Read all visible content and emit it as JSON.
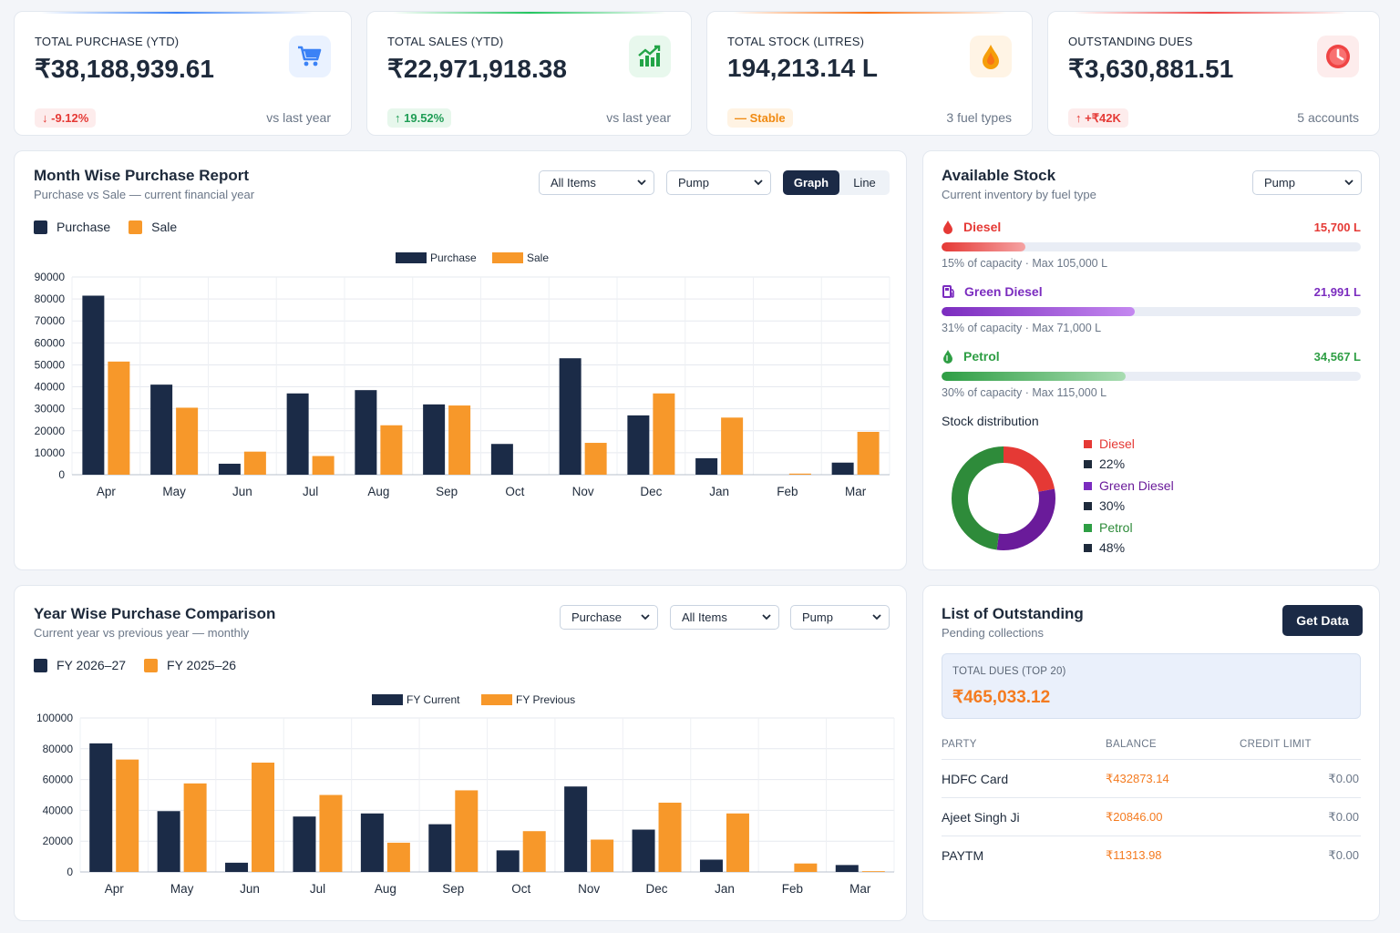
{
  "kpis": [
    {
      "label": "TOTAL PURCHASE (YTD)",
      "currency": "₹",
      "value": "38,188,939.61",
      "badge": "-9.12%",
      "badge_dir": "down",
      "note": "vs last year",
      "icon": "cart-icon",
      "accent": "#3b82f6"
    },
    {
      "label": "TOTAL SALES (YTD)",
      "currency": "₹",
      "value": "22,971,918.38",
      "badge": "19.52%",
      "badge_dir": "up",
      "note": "vs last year",
      "icon": "chart-up-icon",
      "accent": "#22c55e"
    },
    {
      "label": "TOTAL STOCK (LITRES)",
      "currency": "",
      "value": "194,213.14 L",
      "badge": "Stable",
      "badge_dir": "flat",
      "note": "3 fuel types",
      "icon": "drop-icon",
      "accent": "#f59e0b"
    },
    {
      "label": "OUTSTANDING DUES",
      "currency": "₹",
      "value": "3,630,881.51",
      "badge": "+₹42K",
      "badge_dir": "up-red",
      "note": "5 accounts",
      "icon": "clock-icon",
      "accent": "#ef4444"
    }
  ],
  "month_report": {
    "title": "Month Wise Purchase Report",
    "subtitle": "Purchase vs Sale — current financial year",
    "filters": [
      "All Items",
      "Pump"
    ],
    "toggle": [
      "Graph",
      "Line"
    ],
    "legend": [
      "Purchase",
      "Sale"
    ]
  },
  "year_report": {
    "title": "Year Wise Purchase Comparison",
    "subtitle": "Current year vs previous year — monthly",
    "filters": [
      "Purchase",
      "All Items",
      "Pump"
    ],
    "legend": [
      "FY 2026–27",
      "FY 2025–26"
    ]
  },
  "stock": {
    "title": "Available Stock",
    "subtitle": "Current inventory by fuel type",
    "filter": "Pump",
    "fuels": [
      {
        "name": "Diesel",
        "value": "15,700 L",
        "pct": 15,
        "cap": "15% of capacity",
        "max": "Max 105,000 L",
        "color": "#e53935",
        "icon": "drop-icon"
      },
      {
        "name": "Green Diesel",
        "value": "21,991 L",
        "pct": 31,
        "cap": "31% of capacity",
        "max": "Max 71,000 L",
        "color": "#7b2cbf",
        "icon": "fuel-pump-icon"
      },
      {
        "name": "Petrol",
        "value": "34,567 L",
        "pct": 30,
        "cap": "30% of capacity",
        "max": "Max 115,000 L",
        "color": "#2e9e44",
        "icon": "leaf-drop-icon"
      }
    ],
    "dist_title": "Stock distribution",
    "dist": [
      {
        "name": "Diesel",
        "pct": "22%",
        "value": 22,
        "color": "#e53935"
      },
      {
        "name": "Green Diesel",
        "pct": "30%",
        "value": 30,
        "color": "#6a1b9a"
      },
      {
        "name": "Petrol",
        "pct": "48%",
        "value": 48,
        "color": "#2e8b3a"
      }
    ]
  },
  "outstanding": {
    "title": "List of Outstanding",
    "subtitle": "Pending collections",
    "button": "Get Data",
    "total_label": "TOTAL DUES (TOP 20)",
    "total_value": "₹465,033.12",
    "columns": [
      "PARTY",
      "BALANCE",
      "CREDIT LIMIT"
    ],
    "rows": [
      {
        "party": "HDFC Card",
        "balance": "₹432873.14",
        "limit": "₹0.00"
      },
      {
        "party": "Ajeet Singh Ji",
        "balance": "₹20846.00",
        "limit": "₹0.00"
      },
      {
        "party": "PAYTM",
        "balance": "₹11313.98",
        "limit": "₹0.00"
      }
    ]
  },
  "chart_data": [
    {
      "type": "bar",
      "categories": [
        "Apr",
        "May",
        "Jun",
        "Jul",
        "Aug",
        "Sep",
        "Oct",
        "Nov",
        "Dec",
        "Jan",
        "Feb",
        "Mar"
      ],
      "series": [
        {
          "name": "Purchase",
          "color": "#1b2b47",
          "values": [
            81500,
            41000,
            5000,
            37000,
            38500,
            32000,
            14000,
            53000,
            27000,
            7500,
            0,
            5500
          ]
        },
        {
          "name": "Sale",
          "color": "#f7982a",
          "values": [
            51500,
            30500,
            10500,
            8500,
            22500,
            31500,
            0,
            14500,
            37000,
            26000,
            500,
            19500
          ]
        }
      ],
      "ylim": [
        0,
        90000
      ],
      "yticks": [
        0,
        10000,
        20000,
        30000,
        40000,
        50000,
        60000,
        70000,
        80000,
        90000
      ],
      "grid": true,
      "legend_position": "top-center"
    },
    {
      "type": "bar",
      "categories": [
        "Apr",
        "May",
        "Jun",
        "Jul",
        "Aug",
        "Sep",
        "Oct",
        "Nov",
        "Dec",
        "Jan",
        "Feb",
        "Mar"
      ],
      "series": [
        {
          "name": "FY Current",
          "color": "#1b2b47",
          "values": [
            83500,
            39500,
            6000,
            36000,
            38000,
            31000,
            14000,
            55500,
            27500,
            8000,
            0,
            4500
          ]
        },
        {
          "name": "FY Previous",
          "color": "#f7982a",
          "values": [
            73000,
            57500,
            71000,
            50000,
            19000,
            53000,
            26500,
            21000,
            45000,
            38000,
            5500,
            500
          ]
        }
      ],
      "ylim": [
        0,
        100000
      ],
      "yticks": [
        0,
        20000,
        40000,
        60000,
        80000,
        100000
      ],
      "grid": true,
      "legend_position": "top-center"
    }
  ]
}
